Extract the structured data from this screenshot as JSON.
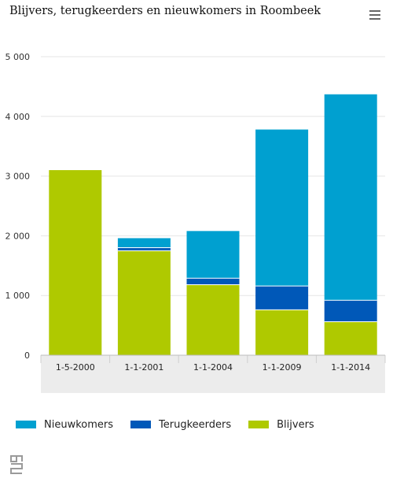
{
  "title": "Blijvers, terugkeerders en nieuwkomers in Roombeek",
  "menu": {
    "icon": "hamburger-menu-icon"
  },
  "logo": {
    "icon": "cbs-logo-icon"
  },
  "colors": {
    "nieuwkomers": "#00a0d0",
    "terugkeerders": "#0058b8",
    "blijvers": "#afc900",
    "grid": "#e6e6e6",
    "axis_band": "#ececec"
  },
  "chart_data": {
    "type": "bar",
    "stacked": true,
    "categories": [
      "1-5-2000",
      "1-1-2001",
      "1-1-2004",
      "1-1-2009",
      "1-1-2014"
    ],
    "series": [
      {
        "name": "Blijvers",
        "values": [
          3100,
          1750,
          1180,
          760,
          560
        ]
      },
      {
        "name": "Terugkeerders",
        "values": [
          0,
          50,
          110,
          400,
          360
        ]
      },
      {
        "name": "Nieuwkomers",
        "values": [
          0,
          160,
          790,
          2620,
          3450
        ]
      }
    ],
    "yticks": [
      "0",
      "1 000",
      "2 000",
      "3 000",
      "4 000",
      "5 000"
    ],
    "ylim": [
      0,
      5000
    ],
    "grid": true,
    "legend_position": "bottom-left"
  },
  "legend": {
    "items": [
      {
        "key": "nieuwkomers",
        "label": "Nieuwkomers"
      },
      {
        "key": "terugkeerders",
        "label": "Terugkeerders"
      },
      {
        "key": "blijvers",
        "label": "Blijvers"
      }
    ]
  }
}
